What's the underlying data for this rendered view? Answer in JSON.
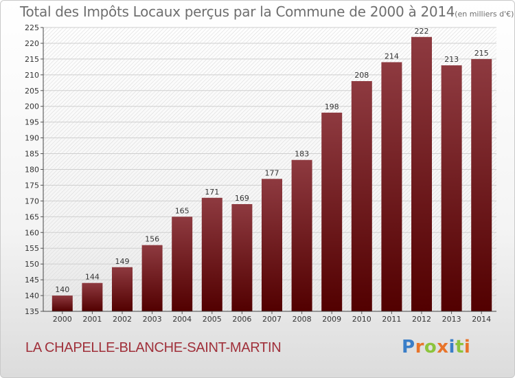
{
  "page": {
    "commune": "LA CHAPELLE-BLANCHE-SAINT-MARTIN",
    "brand": {
      "text": "Proxiti",
      "letter_colors": [
        "#3a7ec8",
        "#e8742a",
        "#8cc43c",
        "#e8742a",
        "#3a7ec8",
        "#8cc43c",
        "#e8742a"
      ]
    }
  },
  "chart_data": {
    "type": "bar",
    "title": "Total des Impôts Locaux perçus par la Commune de 2000 à 2014",
    "subtitle": "(en milliers d'€)",
    "categories": [
      "2000",
      "2001",
      "2002",
      "2003",
      "2004",
      "2005",
      "2006",
      "2007",
      "2008",
      "2009",
      "2010",
      "2011",
      "2012",
      "2013",
      "2014"
    ],
    "values": [
      140,
      144,
      149,
      156,
      165,
      171,
      169,
      177,
      183,
      198,
      208,
      214,
      222,
      213,
      215
    ],
    "ylim": [
      135,
      225
    ],
    "yticks": [
      135,
      140,
      145,
      150,
      155,
      160,
      165,
      170,
      175,
      180,
      185,
      190,
      195,
      200,
      205,
      210,
      215,
      220,
      225
    ],
    "grid": true,
    "bar_color_top": "#8e3a40",
    "bar_color_bottom": "#520000",
    "xlabel": "",
    "ylabel": ""
  }
}
